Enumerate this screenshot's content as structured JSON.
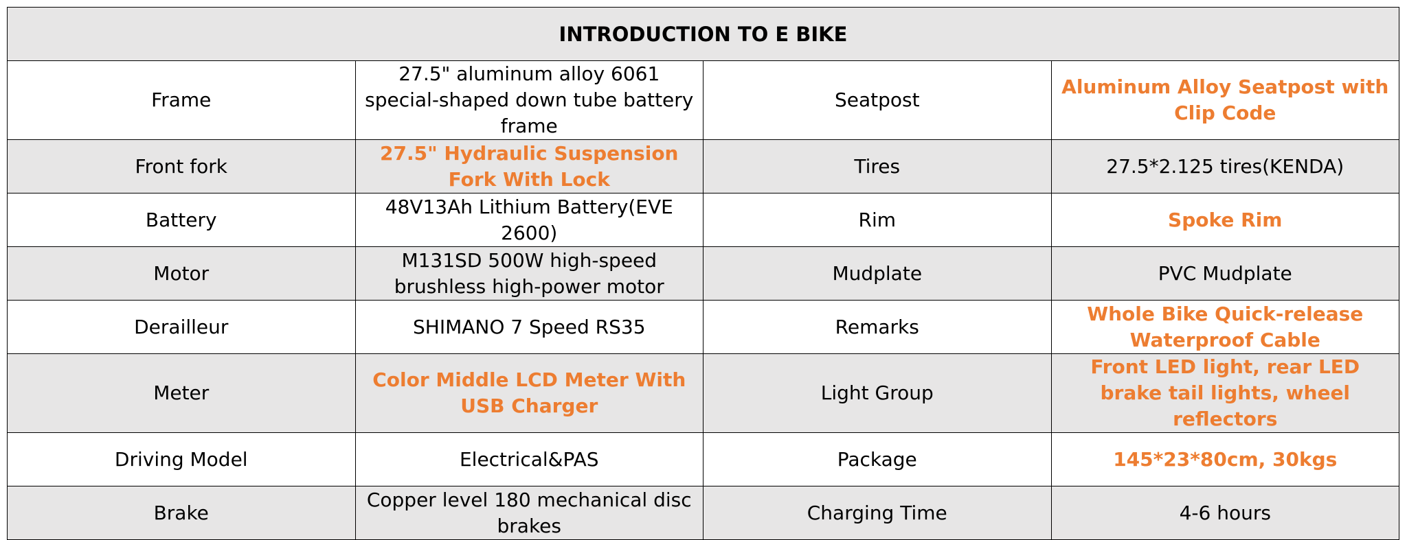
{
  "table": {
    "title": "INTRODUCTION TO E BIKE",
    "rows": [
      [
        {
          "text": "Frame"
        },
        {
          "text": "27.5\" aluminum alloy 6061 special-shaped down tube battery frame"
        },
        {
          "text": "Seatpost"
        },
        {
          "text": "Aluminum Alloy Seatpost with Clip Code",
          "color": "#ed7d31"
        }
      ],
      [
        {
          "text": "Front fork"
        },
        {
          "text": "27.5\" Hydraulic Suspension Fork With Lock",
          "color": "#ed7d31"
        },
        {
          "text": "Tires"
        },
        {
          "text": "27.5*2.125 tires(KENDA)"
        }
      ],
      [
        {
          "text": "Battery"
        },
        {
          "text": "48V13Ah Lithium Battery(EVE 2600)"
        },
        {
          "text": "Rim"
        },
        {
          "text": "Spoke Rim",
          "color": "#ed7d31"
        }
      ],
      [
        {
          "text": "Motor"
        },
        {
          "text": "M131SD 500W high-speed brushless high-power motor"
        },
        {
          "text": "Mudplate"
        },
        {
          "text": "PVC Mudplate"
        }
      ],
      [
        {
          "text": "Derailleur"
        },
        {
          "text": "SHIMANO 7 Speed RS35"
        },
        {
          "text": "Remarks"
        },
        {
          "text": "Whole Bike Quick-release Waterproof Cable",
          "color": "#ed7d31"
        }
      ],
      [
        {
          "text": "Meter"
        },
        {
          "text": "Color Middle LCD Meter With USB Charger",
          "color": "#ed7d31"
        },
        {
          "text": "Light Group"
        },
        {
          "text": "Front LED light, rear LED brake tail lights, wheel reflectors",
          "color": "#ed7d31"
        }
      ],
      [
        {
          "text": "Driving Model"
        },
        {
          "text": "Electrical&PAS"
        },
        {
          "text": "Package"
        },
        {
          "text": "145*23*80cm, 30kgs",
          "color": "#ed7d31"
        }
      ],
      [
        {
          "text": "Brake"
        },
        {
          "text": "Copper level 180 mechanical disc brakes"
        },
        {
          "text": "Charging Time"
        },
        {
          "text": "4-6 hours"
        }
      ]
    ]
  }
}
